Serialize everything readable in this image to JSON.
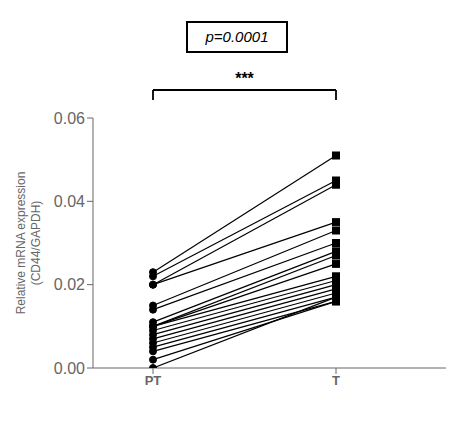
{
  "chart_data": {
    "type": "line",
    "categories": [
      "PT",
      "T"
    ],
    "series": [
      {
        "values": [
          0.0,
          0.017
        ]
      },
      {
        "values": [
          0.002,
          0.016
        ]
      },
      {
        "values": [
          0.004,
          0.016
        ]
      },
      {
        "values": [
          0.005,
          0.017
        ]
      },
      {
        "values": [
          0.006,
          0.018
        ]
      },
      {
        "values": [
          0.007,
          0.019
        ]
      },
      {
        "values": [
          0.008,
          0.02
        ]
      },
      {
        "values": [
          0.009,
          0.021
        ]
      },
      {
        "values": [
          0.01,
          0.022
        ]
      },
      {
        "values": [
          0.01,
          0.025
        ]
      },
      {
        "values": [
          0.01,
          0.027
        ]
      },
      {
        "values": [
          0.011,
          0.028
        ]
      },
      {
        "values": [
          0.014,
          0.03
        ]
      },
      {
        "values": [
          0.015,
          0.033
        ]
      },
      {
        "values": [
          0.02,
          0.035
        ]
      },
      {
        "values": [
          0.02,
          0.044
        ]
      },
      {
        "values": [
          0.022,
          0.045
        ]
      },
      {
        "values": [
          0.023,
          0.051
        ]
      }
    ],
    "color": "#000000",
    "marker": [
      "circle",
      "square"
    ],
    "ylabel": "Relative mRNA expression\n(CD44/GAPDH)",
    "ylim": [
      0.0,
      0.06
    ],
    "yticks": [
      {
        "value": 0.0,
        "label": "0.00"
      },
      {
        "value": 0.02,
        "label": "0.02"
      },
      {
        "value": 0.04,
        "label": "0.04"
      },
      {
        "value": 0.06,
        "label": "0.06"
      }
    ],
    "grid": false,
    "annotations": [
      "p=0.0001",
      "***"
    ]
  }
}
